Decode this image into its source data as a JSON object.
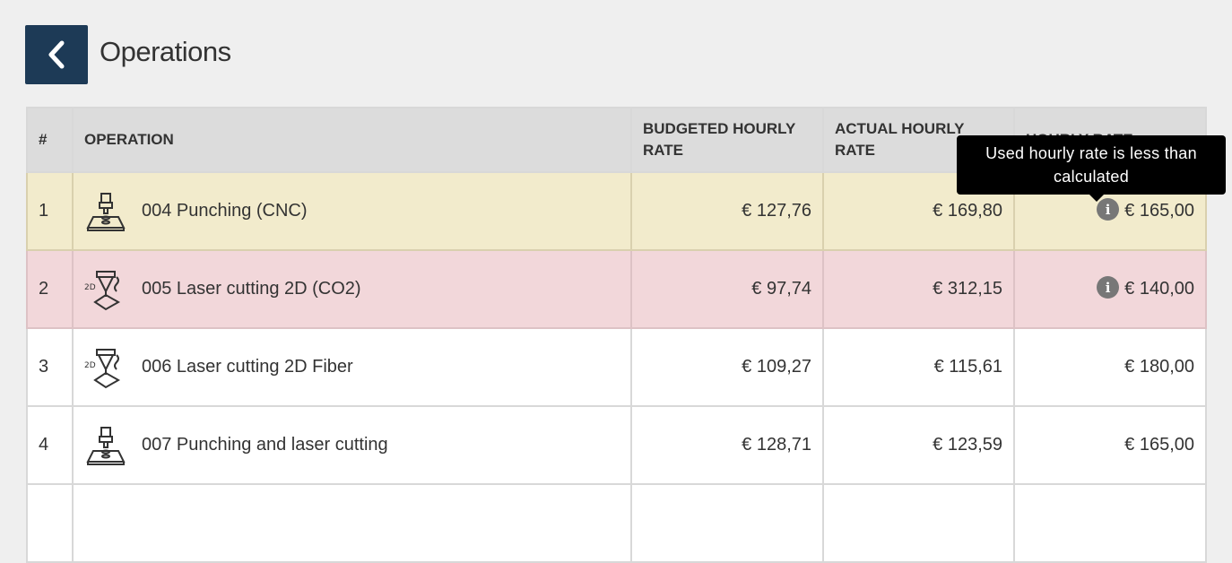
{
  "header": {
    "title": "Operations",
    "back_icon": "chevron-left-icon"
  },
  "table": {
    "columns": [
      "#",
      "OPERATION",
      "BUDGETED HOURLY RATE",
      "ACTUAL HOURLY RATE",
      "HOURLY RATE"
    ],
    "rows": [
      {
        "num": "1",
        "icon": "punching-cnc-icon",
        "operation": "004 Punching (CNC)",
        "budgeted": "€ 127,76",
        "actual": "€ 169,80",
        "hourly": "€ 165,00",
        "info": true,
        "status": "warning",
        "status_color": "#f2ebcc"
      },
      {
        "num": "2",
        "icon": "laser-cutting-2d-icon",
        "operation": "005 Laser cutting 2D (CO2)",
        "budgeted": "€ 97,74",
        "actual": "€ 312,15",
        "hourly": "€ 140,00",
        "info": true,
        "status": "danger",
        "status_color": "#f2d7da"
      },
      {
        "num": "3",
        "icon": "laser-cutting-2d-icon",
        "operation": "006 Laser cutting 2D Fiber",
        "budgeted": "€ 109,27",
        "actual": "€ 115,61",
        "hourly": "€ 180,00",
        "info": false
      },
      {
        "num": "4",
        "icon": "punching-laser-icon",
        "operation": "007 Punching and laser cutting",
        "budgeted": "€ 128,71",
        "actual": "€ 123,59",
        "hourly": "€ 165,00",
        "info": false
      }
    ]
  },
  "tooltip": {
    "text": "Used hourly rate is less than calculated"
  }
}
